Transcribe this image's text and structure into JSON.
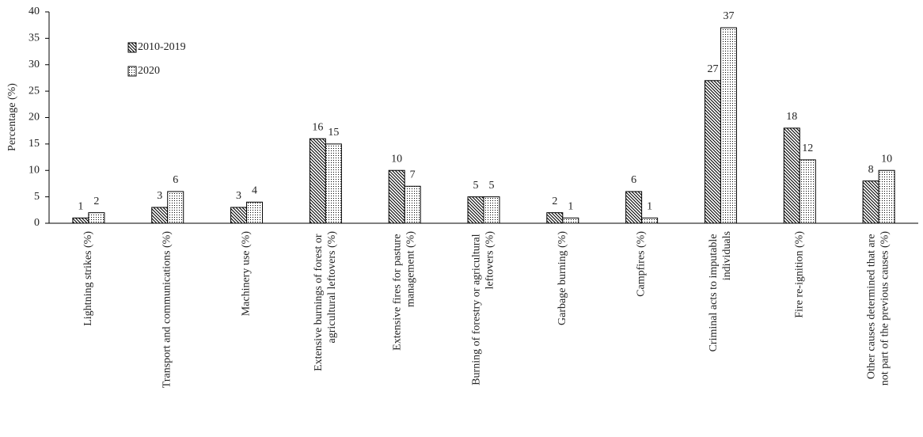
{
  "chart_data": {
    "type": "bar",
    "ylabel": "Percentage (%)",
    "categories": [
      "Lightning strikes (%)",
      "Transport and communications (%)",
      "Machinery use (%)",
      "Extensive burnings of forest or agricultural leftovers (%)",
      "Extensive fires for pasture management (%)",
      "Burning of forestry or agricultural leftovers (%)",
      "Garbage burning (%)",
      "Campfires (%)",
      "Criminal acts to imputable individuals",
      "Fire re-ignition (%)",
      "Other causes determined that are not part of the previous causes (%)"
    ],
    "series": [
      {
        "name": "2010-2019",
        "color": "#000000",
        "pattern": "diagonal",
        "values": [
          1,
          3,
          3,
          16,
          10,
          5,
          2,
          6,
          27,
          18,
          8
        ]
      },
      {
        "name": "2020",
        "color": "#000000",
        "pattern": "dotted",
        "values": [
          2,
          6,
          4,
          15,
          7,
          5,
          1,
          1,
          37,
          12,
          10
        ]
      }
    ],
    "ylim": [
      0,
      40
    ],
    "yticks": [
      0,
      5,
      10,
      15,
      20,
      25,
      30,
      35,
      40
    ]
  }
}
